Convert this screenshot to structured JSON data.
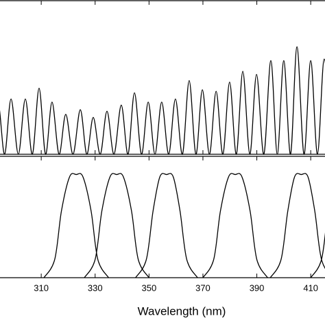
{
  "chart_data": [
    {
      "type": "line",
      "color": "#000000",
      "xlim": [
        294.7,
        415.3
      ],
      "ylim": [
        0,
        1
      ],
      "xticks": [
        310,
        330,
        350,
        370,
        390,
        410
      ],
      "x": [
        291.5,
        294.0,
        296.4,
        298.8,
        301.5,
        304.1,
        306.7,
        309.2,
        311.6,
        314.0,
        316.6,
        319.1,
        321.8,
        324.5,
        326.9,
        329.3,
        331.9,
        334.4,
        337.0,
        339.7,
        342.2,
        344.6,
        347.2,
        349.7,
        352.2,
        354.7,
        357.3,
        359.8,
        362.4,
        364.9,
        367.4,
        369.8,
        372.4,
        374.9,
        377.4,
        379.9,
        382.4,
        384.8,
        387.4,
        389.9,
        392.6,
        395.2,
        397.6,
        400.0,
        402.5,
        404.9,
        407.5,
        410.0,
        412.5,
        415.0,
        417.5
      ],
      "values": [
        0,
        0.33,
        0,
        0.36,
        0,
        0.36,
        0,
        0.43,
        0,
        0.34,
        0,
        0.26,
        0,
        0.29,
        0,
        0.24,
        0,
        0.28,
        0,
        0.32,
        0,
        0.4,
        0,
        0.34,
        0,
        0.34,
        0,
        0.36,
        0,
        0.48,
        0,
        0.42,
        0,
        0.41,
        0,
        0.47,
        0,
        0.54,
        0,
        0.52,
        0,
        0.61,
        0,
        0.61,
        0,
        0.7,
        0,
        0.61,
        0,
        0.62,
        0
      ]
    },
    {
      "type": "line",
      "xlabel": "Wavelength (nm)",
      "color": "#000000",
      "xlim": [
        294.7,
        415.3
      ],
      "ylim": [
        0,
        1
      ],
      "xticks": [
        310,
        330,
        350,
        370,
        390,
        410
      ],
      "series": [
        {
          "x": [
            311,
            315,
            317.5,
            320.5,
            323,
            325.5,
            328.5,
            331,
            335
          ],
          "values": [
            0,
            0.15,
            0.55,
            0.83,
            0.85,
            0.83,
            0.55,
            0.15,
            0
          ]
        },
        {
          "x": [
            326,
            330,
            332.5,
            335.5,
            338,
            340.5,
            343.5,
            346,
            350
          ],
          "values": [
            0,
            0.15,
            0.55,
            0.83,
            0.85,
            0.83,
            0.55,
            0.15,
            0
          ]
        },
        {
          "x": [
            345,
            349,
            351.5,
            354,
            356.5,
            359,
            361.5,
            364,
            368
          ],
          "values": [
            0,
            0.15,
            0.55,
            0.83,
            0.85,
            0.83,
            0.55,
            0.15,
            0
          ]
        },
        {
          "x": [
            370,
            374,
            376.5,
            379.5,
            382,
            384.5,
            387.5,
            390,
            394
          ],
          "values": [
            0,
            0.15,
            0.55,
            0.83,
            0.85,
            0.83,
            0.55,
            0.15,
            0
          ]
        },
        {
          "x": [
            395,
            399,
            401.5,
            404,
            406.5,
            409,
            411.5,
            414,
            418
          ],
          "values": [
            0,
            0.15,
            0.55,
            0.83,
            0.85,
            0.83,
            0.55,
            0.15,
            0
          ]
        },
        {
          "x": [
            410,
            414,
            416.5,
            419.5,
            422
          ],
          "values": [
            0,
            0.15,
            0.55,
            0.83,
            0.85
          ]
        }
      ]
    }
  ]
}
